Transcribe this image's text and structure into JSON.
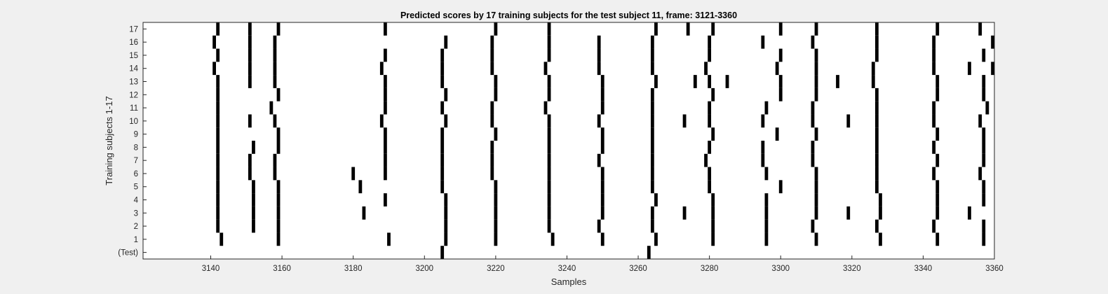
{
  "chart_data": {
    "type": "heatmap",
    "title": "Predicted scores by 17 training subjects for the test subject 11, frame: 3121-3360",
    "xlabel": "Samples",
    "ylabel": "Training subjects 1-17",
    "xlim": [
      3121,
      3360
    ],
    "x_ticks": [
      3140,
      3160,
      3180,
      3200,
      3220,
      3240,
      3260,
      3280,
      3300,
      3320,
      3340,
      3360
    ],
    "y_tick_labels": [
      "(Test)",
      "1",
      "2",
      "3",
      "4",
      "5",
      "6",
      "7",
      "8",
      "9",
      "10",
      "11",
      "12",
      "13",
      "14",
      "15",
      "16",
      "17"
    ],
    "grid": false,
    "legend": "none",
    "colors": {
      "event": "#000000",
      "background": "#ffffff",
      "figure": "#f0f0f0"
    },
    "rows": [
      {
        "label": "(Test)",
        "events": [
          3205,
          3263
        ]
      },
      {
        "label": "1",
        "events": [
          3143,
          3159,
          3190,
          3206,
          3220,
          3236,
          3250,
          3265,
          3281,
          3296,
          3310,
          3328,
          3344,
          3357
        ]
      },
      {
        "label": "2",
        "events": [
          3142,
          3152,
          3159,
          3206,
          3220,
          3235,
          3249,
          3264,
          3281,
          3296,
          3309,
          3327,
          3343,
          3357
        ]
      },
      {
        "label": "3",
        "events": [
          3142,
          3152,
          3159,
          3183,
          3206,
          3220,
          3235,
          3250,
          3264,
          3273,
          3281,
          3296,
          3310,
          3319,
          3328,
          3344,
          3353
        ]
      },
      {
        "label": "4",
        "events": [
          3142,
          3152,
          3159,
          3189,
          3206,
          3220,
          3235,
          3250,
          3265,
          3281,
          3296,
          3310,
          3328,
          3344,
          3357
        ]
      },
      {
        "label": "5",
        "events": [
          3142,
          3152,
          3159,
          3182,
          3205,
          3220,
          3235,
          3250,
          3264,
          3280,
          3300,
          3310,
          3327,
          3344,
          3357
        ]
      },
      {
        "label": "6",
        "events": [
          3142,
          3151,
          3158,
          3180,
          3189,
          3205,
          3219,
          3235,
          3250,
          3264,
          3280,
          3296,
          3310,
          3327,
          3343,
          3356
        ]
      },
      {
        "label": "7",
        "events": [
          3142,
          3151,
          3158,
          3189,
          3205,
          3219,
          3235,
          3249,
          3264,
          3279,
          3295,
          3309,
          3327,
          3344,
          3357
        ]
      },
      {
        "label": "8",
        "events": [
          3142,
          3152,
          3159,
          3189,
          3205,
          3219,
          3235,
          3250,
          3264,
          3280,
          3295,
          3309,
          3327,
          3343,
          3357
        ]
      },
      {
        "label": "9",
        "events": [
          3142,
          3159,
          3189,
          3205,
          3220,
          3235,
          3250,
          3264,
          3281,
          3299,
          3310,
          3327,
          3344,
          3357
        ]
      },
      {
        "label": "10",
        "events": [
          3142,
          3151,
          3158,
          3188,
          3206,
          3219,
          3235,
          3249,
          3264,
          3273,
          3280,
          3295,
          3309,
          3319,
          3327,
          3343,
          3356
        ]
      },
      {
        "label": "11",
        "events": [
          3142,
          3157,
          3189,
          3205,
          3219,
          3234,
          3250,
          3264,
          3280,
          3296,
          3309,
          3327,
          3343,
          3358
        ]
      },
      {
        "label": "12",
        "events": [
          3142,
          3159,
          3189,
          3206,
          3220,
          3235,
          3250,
          3264,
          3281,
          3300,
          3310,
          3327,
          3344,
          3357
        ]
      },
      {
        "label": "13",
        "events": [
          3142,
          3151,
          3158,
          3189,
          3205,
          3220,
          3235,
          3250,
          3265,
          3276,
          3280,
          3285,
          3300,
          3310,
          3316,
          3326,
          3344,
          3357
        ]
      },
      {
        "label": "14",
        "events": [
          3141,
          3151,
          3158,
          3188,
          3205,
          3219,
          3234,
          3249,
          3264,
          3279,
          3299,
          3310,
          3326,
          3343,
          3353,
          3360
        ]
      },
      {
        "label": "15",
        "events": [
          3142,
          3151,
          3158,
          3189,
          3205,
          3219,
          3235,
          3249,
          3264,
          3280,
          3300,
          3310,
          3327,
          3343,
          3357
        ]
      },
      {
        "label": "16",
        "events": [
          3141,
          3151,
          3158,
          3206,
          3219,
          3235,
          3249,
          3264,
          3280,
          3295,
          3309,
          3327,
          3343,
          3360
        ]
      },
      {
        "label": "17",
        "events": [
          3142,
          3151,
          3159,
          3189,
          3220,
          3235,
          3265,
          3274,
          3281,
          3300,
          3310,
          3327,
          3344,
          3356
        ]
      }
    ]
  }
}
